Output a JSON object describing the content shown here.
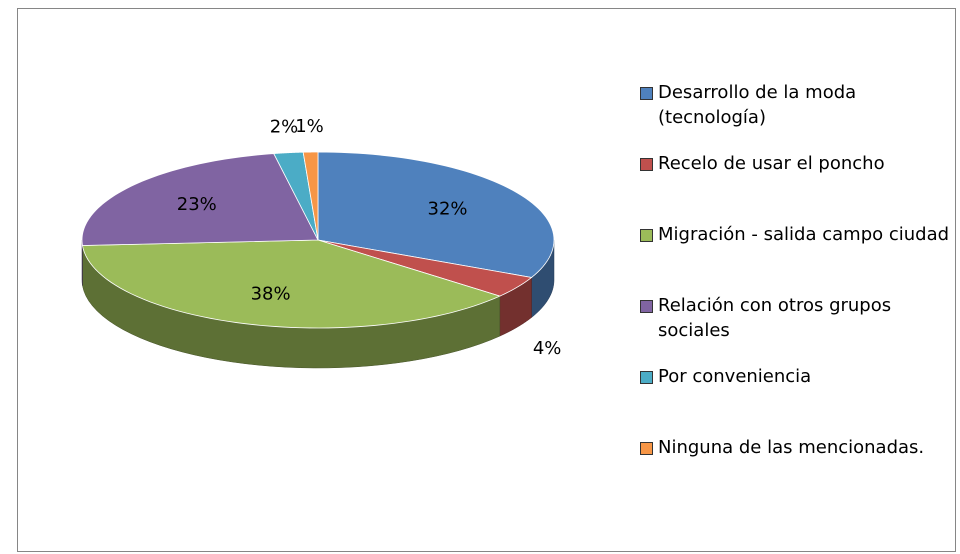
{
  "chart_data": {
    "type": "pie3d",
    "categories": [
      "Desarrollo de la moda (tecnología)",
      "Recelo de usar el poncho",
      "Migración - salida campo ciudad",
      "Relación con otros grupos sociales",
      "Por conveniencia",
      "Ninguna de las mencionadas."
    ],
    "values": [
      32,
      4,
      38,
      23,
      2,
      1
    ],
    "value_labels": [
      "32%",
      "4%",
      "38%",
      "23%",
      "2%",
      "1%"
    ],
    "colors": [
      "#4f81bd",
      "#c0504d",
      "#9bbb59",
      "#8064a2",
      "#4bacc6",
      "#f79646"
    ],
    "legend": "right"
  }
}
